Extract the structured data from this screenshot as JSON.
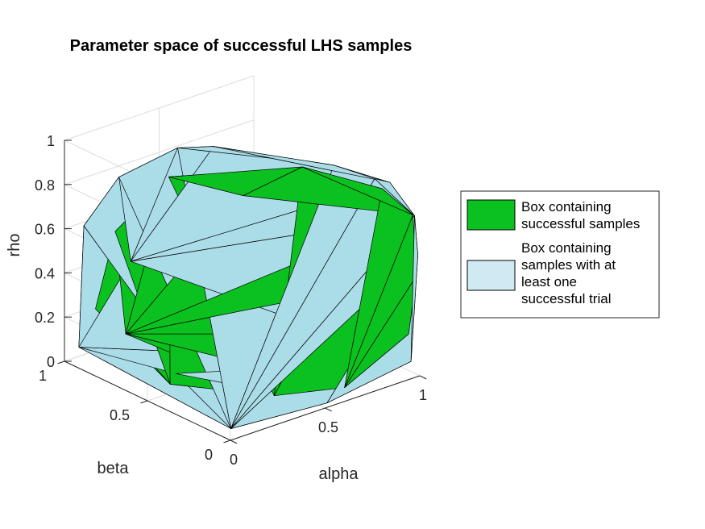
{
  "chart_data": {
    "type": "3d-convex-hull",
    "title": "Parameter space of successful LHS samples",
    "xlabel": "alpha",
    "ylabel": "beta",
    "zlabel": "rho",
    "xlim": [
      0,
      1
    ],
    "ylim": [
      0,
      1
    ],
    "zlim": [
      0,
      1
    ],
    "x_ticks": [
      {
        "v": 0,
        "label": "0"
      },
      {
        "v": 0.5,
        "label": "0.5"
      },
      {
        "v": 1,
        "label": "1"
      }
    ],
    "y_ticks": [
      {
        "v": 0,
        "label": "0"
      },
      {
        "v": 0.5,
        "label": "0.5"
      },
      {
        "v": 1,
        "label": "1"
      }
    ],
    "z_ticks": [
      {
        "v": 0,
        "label": "0"
      },
      {
        "v": 0.2,
        "label": "0.2"
      },
      {
        "v": 0.4,
        "label": "0.4"
      },
      {
        "v": 0.6,
        "label": "0.6"
      },
      {
        "v": 0.8,
        "label": "0.8"
      },
      {
        "v": 1,
        "label": "1"
      }
    ],
    "grid": true,
    "legend": {
      "placement": "right",
      "entries": [
        {
          "lines": [
            "Box containing",
            "successful samples"
          ],
          "color": "#0bc11f"
        },
        {
          "lines": [
            "Box containing",
            "samples with at",
            "least one",
            "successful trial"
          ],
          "color": "#cfeaf3"
        }
      ]
    },
    "series": [
      {
        "name": "Box containing samples with at least one successful trial",
        "color": "#abdde9",
        "points": [
          [
            0.02,
            0.02,
            0.04
          ],
          [
            0.51,
            0.0,
            0.02
          ],
          [
            0.98,
            0.03,
            0.06
          ],
          [
            0.22,
            0.58,
            0.03
          ],
          [
            0.05,
            0.97,
            0.06
          ],
          [
            0.35,
            1.0,
            0.35
          ],
          [
            0.05,
            0.94,
            0.62
          ],
          [
            0.13,
            0.82,
            0.86
          ],
          [
            0.3,
            0.66,
            1.0
          ],
          [
            0.42,
            0.58,
            1.0
          ],
          [
            0.74,
            0.22,
            0.95
          ],
          [
            0.93,
            0.1,
            0.86
          ],
          [
            0.99,
            0.02,
            0.72
          ],
          [
            0.99,
            0.0,
            0.55
          ],
          [
            0.85,
            0.1,
            0.9
          ]
        ]
      },
      {
        "name": "Box containing successful samples",
        "color": "#0bc11f",
        "points": [
          [
            0.12,
            0.5,
            0.04
          ],
          [
            0.38,
            0.17,
            0.03
          ],
          [
            0.62,
            0.02,
            0.05
          ],
          [
            0.95,
            0.01,
            0.2
          ],
          [
            0.28,
            0.95,
            0.06
          ],
          [
            0.12,
            0.95,
            0.22
          ],
          [
            0.11,
            0.82,
            0.62
          ],
          [
            0.27,
            0.68,
            0.87
          ],
          [
            0.66,
            0.32,
            0.93
          ],
          [
            0.88,
            0.09,
            0.85
          ],
          [
            0.99,
            0.03,
            0.72
          ],
          [
            0.99,
            0.01,
            0.45
          ],
          [
            0.55,
            0.55,
            0.75
          ],
          [
            0.48,
            0.4,
            0.45
          ],
          [
            0.62,
            0.3,
            0.55
          ],
          [
            0.78,
            0.2,
            0.6
          ]
        ]
      }
    ]
  }
}
